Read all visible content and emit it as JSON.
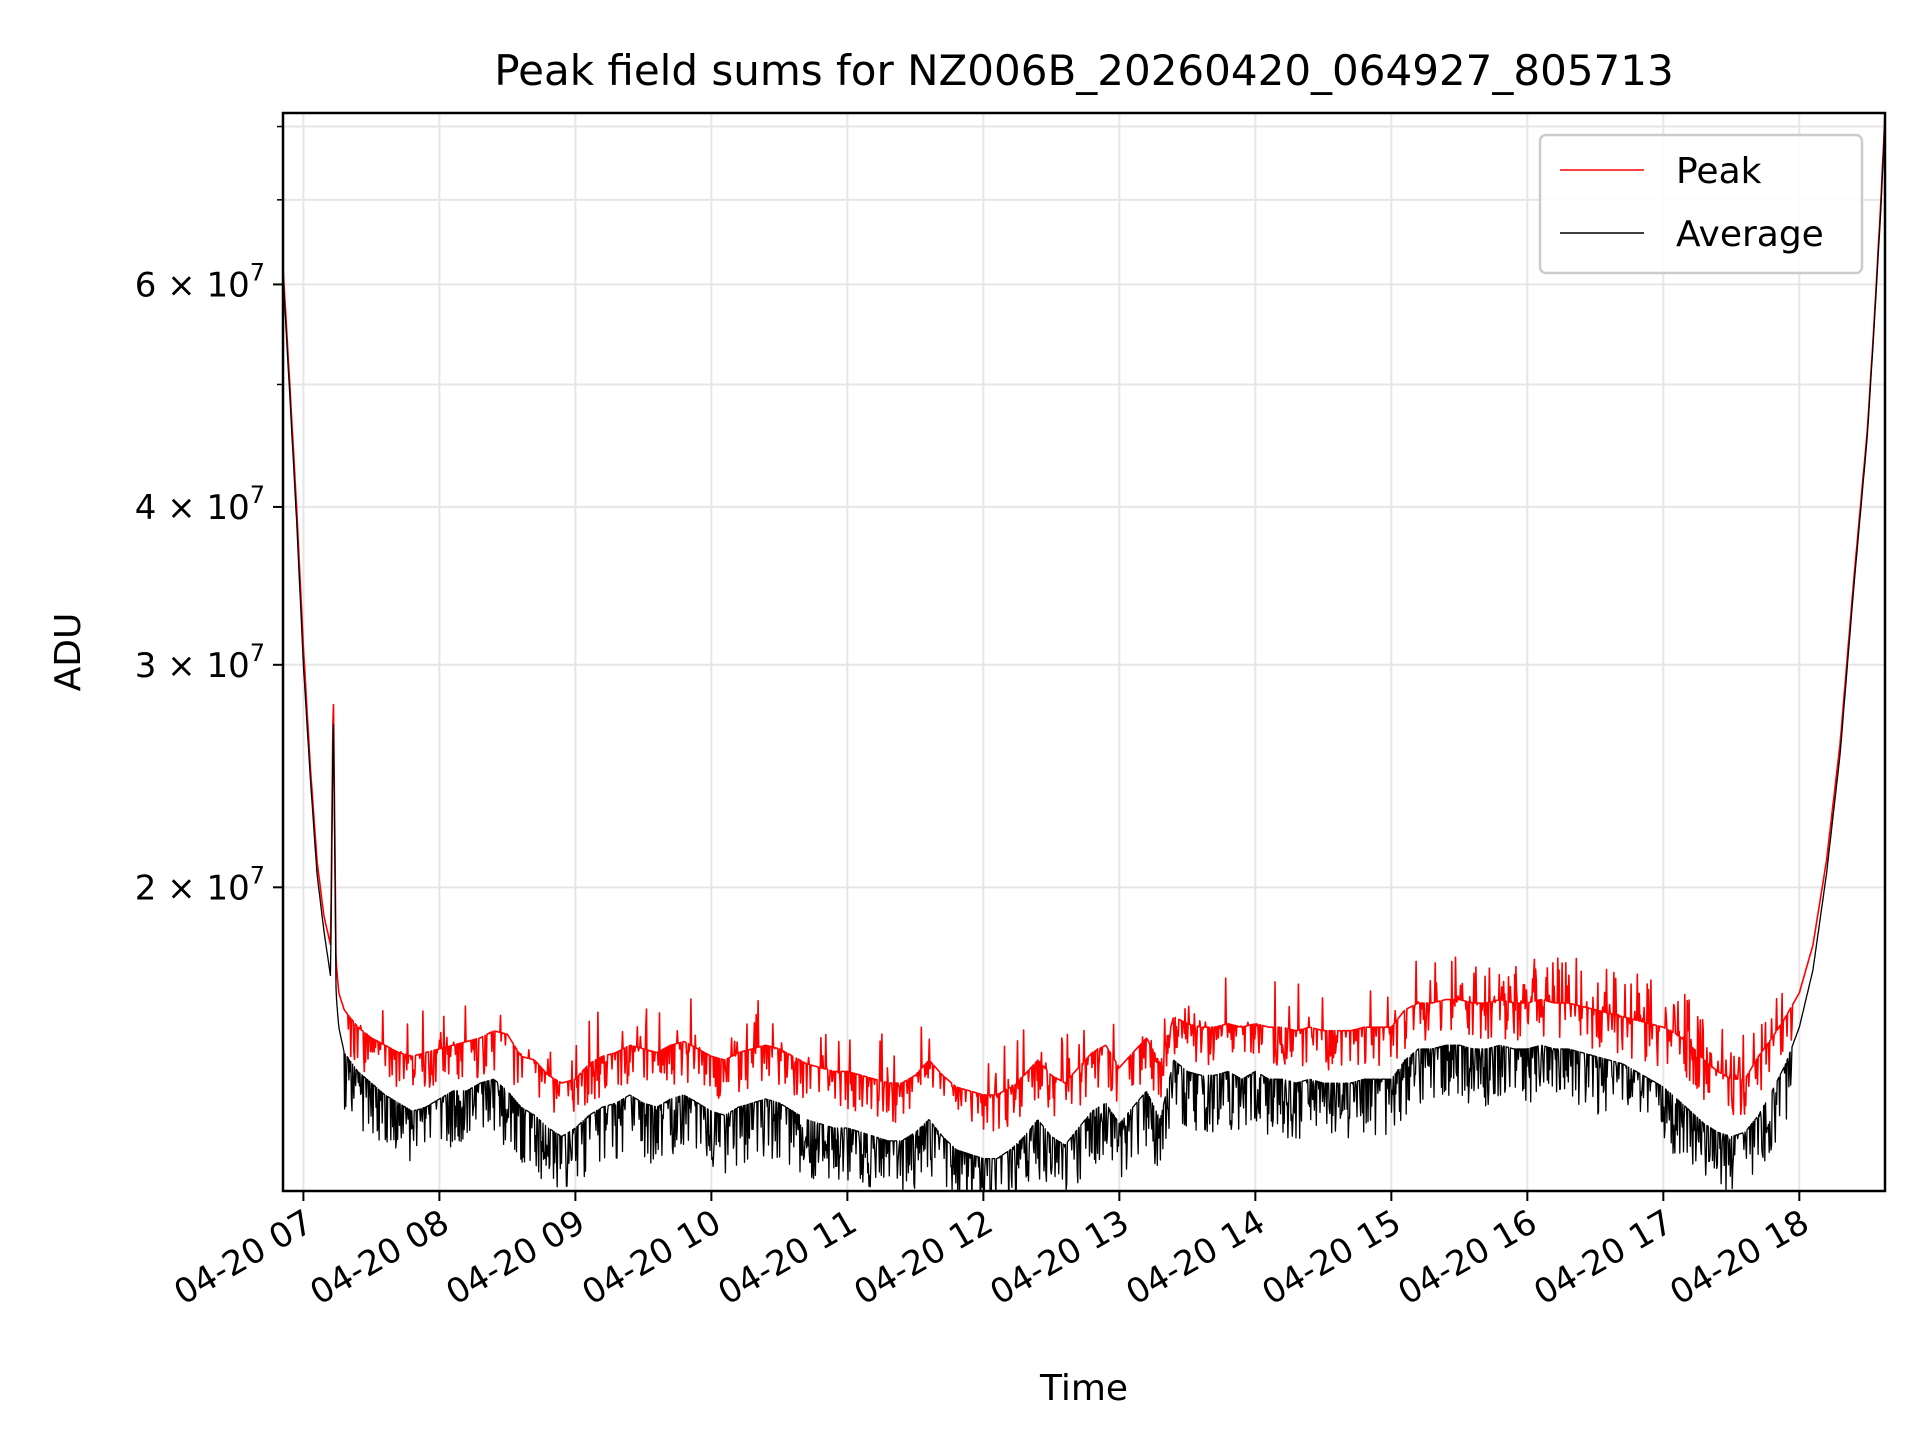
{
  "chart_data": {
    "type": "line",
    "title": "Peak field sums for NZ006B_20260420_064927_805713",
    "xlabel": "Time",
    "ylabel": "ADU",
    "yscale": "log",
    "ylim": [
      11500000,
      82000000
    ],
    "xlim_hours": [
      6.85,
      18.63
    ],
    "grid": true,
    "legend_position": "top-right",
    "x_ticks": [
      {
        "hour": 7,
        "label": "04-20 07"
      },
      {
        "hour": 8,
        "label": "04-20 08"
      },
      {
        "hour": 9,
        "label": "04-20 09"
      },
      {
        "hour": 10,
        "label": "04-20 10"
      },
      {
        "hour": 11,
        "label": "04-20 11"
      },
      {
        "hour": 12,
        "label": "04-20 12"
      },
      {
        "hour": 13,
        "label": "04-20 13"
      },
      {
        "hour": 14,
        "label": "04-20 14"
      },
      {
        "hour": 15,
        "label": "04-20 15"
      },
      {
        "hour": 16,
        "label": "04-20 16"
      },
      {
        "hour": 17,
        "label": "04-20 17"
      },
      {
        "hour": 18,
        "label": "04-20 18"
      }
    ],
    "y_major_ticks": [
      {
        "value": 20000000,
        "mantissa": "2",
        "exponent": "7"
      },
      {
        "value": 30000000,
        "mantissa": "3",
        "exponent": "7"
      },
      {
        "value": 40000000,
        "mantissa": "4",
        "exponent": "7"
      },
      {
        "value": 60000000,
        "mantissa": "6",
        "exponent": "7"
      }
    ],
    "y_minor_ticks": [
      50000000,
      70000000,
      80000000
    ],
    "series": [
      {
        "name": "Peak",
        "color": "#ff0000",
        "x_hours": [
          6.85,
          6.9,
          6.95,
          7.0,
          7.05,
          7.1,
          7.15,
          7.2,
          7.22,
          7.24,
          7.26,
          7.3,
          7.4,
          7.5,
          7.6,
          7.7,
          7.8,
          7.9,
          8.0,
          8.1,
          8.2,
          8.3,
          8.4,
          8.5,
          8.6,
          8.7,
          8.8,
          8.9,
          9.0,
          9.1,
          9.2,
          9.3,
          9.4,
          9.5,
          9.6,
          9.7,
          9.8,
          9.9,
          10.0,
          10.1,
          10.2,
          10.3,
          10.4,
          10.5,
          10.6,
          10.7,
          10.8,
          10.9,
          11.0,
          11.1,
          11.2,
          11.3,
          11.4,
          11.5,
          11.6,
          11.7,
          11.8,
          11.9,
          12.0,
          12.1,
          12.2,
          12.3,
          12.4,
          12.5,
          12.6,
          12.7,
          12.8,
          12.9,
          13.0,
          13.1,
          13.2,
          13.3,
          13.4,
          13.5,
          13.6,
          13.7,
          13.8,
          13.9,
          14.0,
          14.1,
          14.2,
          14.3,
          14.4,
          14.5,
          14.6,
          14.7,
          14.8,
          14.9,
          15.0,
          15.1,
          15.2,
          15.3,
          15.4,
          15.5,
          15.6,
          15.7,
          15.8,
          15.9,
          16.0,
          16.1,
          16.2,
          16.3,
          16.4,
          16.5,
          16.6,
          16.7,
          16.8,
          16.9,
          17.0,
          17.1,
          17.2,
          17.3,
          17.4,
          17.5,
          17.6,
          17.7,
          17.8,
          17.9,
          18.0,
          18.1,
          18.2,
          18.3,
          18.4,
          18.5,
          18.55,
          18.6,
          18.63
        ],
        "values": [
          62000000,
          50000000,
          40000000,
          31000000,
          25000000,
          21000000,
          19000000,
          18000000,
          29000000,
          17500000,
          16500000,
          16000000,
          15500000,
          15200000,
          15000000,
          14800000,
          14700000,
          14800000,
          14900000,
          15000000,
          15100000,
          15200000,
          15400000,
          15300000,
          14700000,
          14600000,
          14200000,
          14000000,
          14100000,
          14500000,
          14700000,
          14800000,
          15000000,
          14900000,
          14800000,
          15000000,
          15100000,
          14900000,
          14700000,
          14600000,
          14800000,
          14900000,
          15000000,
          14900000,
          14700000,
          14500000,
          14400000,
          14300000,
          14300000,
          14200000,
          14100000,
          14000000,
          14000000,
          14200000,
          14600000,
          14200000,
          13900000,
          13800000,
          13700000,
          13700000,
          13900000,
          14200000,
          14600000,
          14200000,
          14000000,
          14400000,
          14800000,
          15000000,
          14400000,
          14800000,
          15200000,
          14500000,
          15800000,
          15600000,
          15500000,
          15500000,
          15600000,
          15500000,
          15600000,
          15500000,
          15500000,
          15400000,
          15500000,
          15400000,
          15400000,
          15400000,
          15500000,
          15500000,
          15500000,
          16000000,
          16200000,
          16200000,
          16300000,
          16300000,
          16200000,
          16200000,
          16300000,
          16200000,
          16200000,
          16300000,
          16200000,
          16200000,
          16100000,
          16000000,
          15900000,
          15800000,
          15700000,
          15600000,
          15500000,
          15300000,
          15000000,
          14600000,
          14300000,
          14100000,
          14100000,
          14700000,
          15200000,
          15800000,
          16500000,
          18000000,
          21000000,
          26000000,
          35000000,
          46000000,
          56000000,
          70000000,
          82000000
        ]
      },
      {
        "name": "Average",
        "color": "#000000",
        "x_hours": [
          6.85,
          6.9,
          6.95,
          7.0,
          7.05,
          7.1,
          7.15,
          7.2,
          7.22,
          7.24,
          7.26,
          7.3,
          7.4,
          7.5,
          7.6,
          7.7,
          7.8,
          7.9,
          8.0,
          8.1,
          8.2,
          8.3,
          8.4,
          8.5,
          8.6,
          8.7,
          8.8,
          8.9,
          9.0,
          9.1,
          9.2,
          9.3,
          9.4,
          9.5,
          9.6,
          9.7,
          9.8,
          9.9,
          10.0,
          10.1,
          10.2,
          10.3,
          10.4,
          10.5,
          10.6,
          10.7,
          10.8,
          10.9,
          11.0,
          11.1,
          11.2,
          11.3,
          11.4,
          11.5,
          11.6,
          11.7,
          11.8,
          11.9,
          12.0,
          12.1,
          12.2,
          12.3,
          12.4,
          12.5,
          12.6,
          12.7,
          12.8,
          12.9,
          13.0,
          13.1,
          13.2,
          13.3,
          13.4,
          13.5,
          13.6,
          13.7,
          13.8,
          13.9,
          14.0,
          14.1,
          14.2,
          14.3,
          14.4,
          14.5,
          14.6,
          14.7,
          14.8,
          14.9,
          15.0,
          15.1,
          15.2,
          15.3,
          15.4,
          15.5,
          15.6,
          15.7,
          15.8,
          15.9,
          16.0,
          16.1,
          16.2,
          16.3,
          16.4,
          16.5,
          16.6,
          16.7,
          16.8,
          16.9,
          17.0,
          17.1,
          17.2,
          17.3,
          17.4,
          17.5,
          17.6,
          17.7,
          17.8,
          17.9,
          18.0,
          18.1,
          18.2,
          18.3,
          18.4,
          18.5,
          18.55,
          18.6,
          18.63
        ],
        "values": [
          61000000,
          49000000,
          39000000,
          30000000,
          24500000,
          20500000,
          18500000,
          17000000,
          28000000,
          16500000,
          15500000,
          14800000,
          14300000,
          14000000,
          13700000,
          13500000,
          13300000,
          13400000,
          13600000,
          13800000,
          13800000,
          14000000,
          14100000,
          13800000,
          13400000,
          13200000,
          12900000,
          12700000,
          12900000,
          13200000,
          13400000,
          13500000,
          13700000,
          13500000,
          13400000,
          13600000,
          13700000,
          13500000,
          13300000,
          13200000,
          13400000,
          13500000,
          13600000,
          13500000,
          13300000,
          13100000,
          13000000,
          12900000,
          12900000,
          12800000,
          12700000,
          12600000,
          12600000,
          12800000,
          13100000,
          12700000,
          12400000,
          12300000,
          12200000,
          12200000,
          12400000,
          12700000,
          13100000,
          12700000,
          12500000,
          12900000,
          13300000,
          13500000,
          13000000,
          13400000,
          13800000,
          13100000,
          14600000,
          14300000,
          14200000,
          14200000,
          14300000,
          14100000,
          14300000,
          14100000,
          14100000,
          14000000,
          14100000,
          14000000,
          14000000,
          14000000,
          14100000,
          14100000,
          14100000,
          14600000,
          14900000,
          14900000,
          15000000,
          15000000,
          14900000,
          14900000,
          15000000,
          14900000,
          14900000,
          15000000,
          14900000,
          14900000,
          14800000,
          14700000,
          14600000,
          14500000,
          14300000,
          14100000,
          13900000,
          13600000,
          13300000,
          13000000,
          12800000,
          12700000,
          12800000,
          13200000,
          13800000,
          14500000,
          15500000,
          17200000,
          20500000,
          25500000,
          34500000,
          45500000,
          55500000,
          69000000,
          81000000
        ]
      }
    ]
  }
}
